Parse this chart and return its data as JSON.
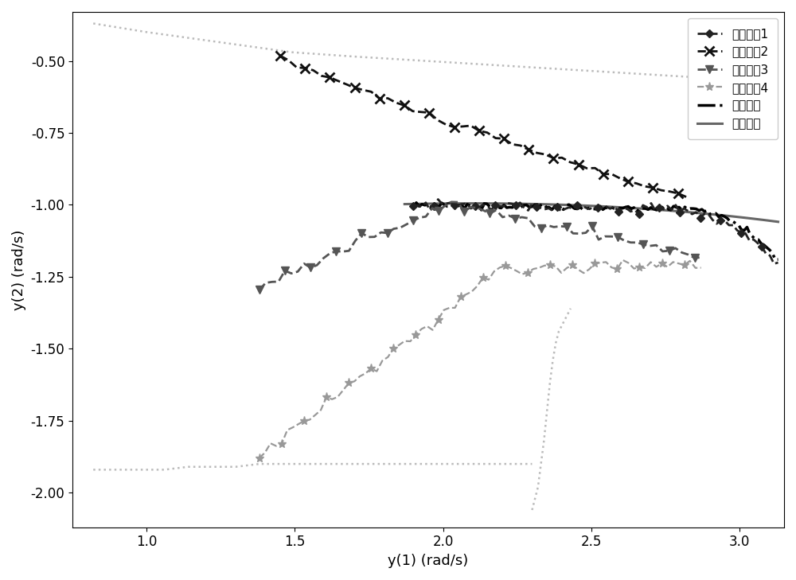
{
  "xlabel": "y(1) (rad/s)",
  "ylabel": "y(2) (rad/s)",
  "xlim": [
    0.75,
    3.15
  ],
  "ylim": [
    -2.12,
    -0.33
  ],
  "xticks": [
    1.0,
    1.5,
    2.0,
    2.5,
    3.0
  ],
  "yticks": [
    -2.0,
    -1.75,
    -1.5,
    -1.25,
    -1.0,
    -0.75,
    -0.5
  ],
  "legend_labels": [
    "故障模态1",
    "故障模态2",
    "故障模态3",
    "故障模态4",
    "当前系统",
    "参考系统"
  ],
  "color_mode1": "#222222",
  "color_mode2": "#111111",
  "color_mode3": "#555555",
  "color_mode4": "#999999",
  "color_current": "#000000",
  "color_reference": "#666666",
  "color_ghost": "#bbbbbb",
  "background_color": "#ffffff",
  "font_size": 13,
  "legend_fontsize": 11,
  "ghost_upper_x": [
    0.82,
    0.88,
    0.94,
    1.0,
    1.07,
    1.14,
    1.21,
    1.28,
    1.35,
    1.42,
    1.49,
    1.56,
    1.63,
    1.7,
    1.78,
    1.86,
    1.94,
    2.02,
    2.1,
    2.18,
    2.26,
    2.34,
    2.42,
    2.5,
    2.58,
    2.66,
    2.74,
    2.82,
    2.9,
    2.98
  ],
  "ghost_upper_y": [
    -0.37,
    -0.38,
    -0.39,
    -0.4,
    -0.41,
    -0.42,
    -0.43,
    -0.44,
    -0.45,
    -0.46,
    -0.47,
    -0.475,
    -0.48,
    -0.485,
    -0.49,
    -0.495,
    -0.5,
    -0.505,
    -0.51,
    -0.515,
    -0.52,
    -0.525,
    -0.53,
    -0.535,
    -0.54,
    -0.545,
    -0.55,
    -0.555,
    -0.56,
    -0.565
  ],
  "ghost_lower_x": [
    0.82,
    0.9,
    0.98,
    1.06,
    1.14,
    1.22,
    1.3,
    1.38,
    1.46,
    1.54,
    1.62,
    1.7,
    1.78,
    1.86,
    1.94,
    2.02,
    2.1,
    2.18,
    2.26,
    2.3
  ],
  "ghost_lower_y": [
    -1.92,
    -1.92,
    -1.92,
    -1.92,
    -1.91,
    -1.91,
    -1.91,
    -1.9,
    -1.9,
    -1.9,
    -1.9,
    -1.9,
    -1.9,
    -1.9,
    -1.9,
    -1.9,
    -1.9,
    -1.9,
    -1.9,
    -1.9
  ],
  "ghost_vert_x": [
    2.3,
    2.31,
    2.32,
    2.33,
    2.34,
    2.35,
    2.36,
    2.37,
    2.38,
    2.39,
    2.4,
    2.41,
    2.42,
    2.43
  ],
  "ghost_vert_y": [
    -2.06,
    -2.02,
    -1.98,
    -1.9,
    -1.82,
    -1.72,
    -1.62,
    -1.54,
    -1.48,
    -1.44,
    -1.42,
    -1.4,
    -1.38,
    -1.36
  ]
}
